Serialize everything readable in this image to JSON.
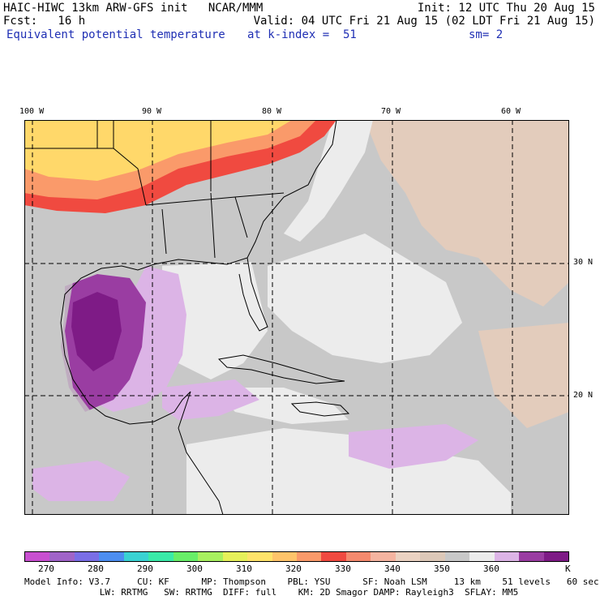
{
  "header": {
    "line1_left": "HAIC-HIWC 13km ARW-GFS init   NCAR/MMM",
    "line1_right": "Init: 12 UTC Thu 20 Aug 15",
    "line2_left": "Fcst:   16 h",
    "line2_right": "Valid: 04 UTC Fri 21 Aug 15 (02 LDT Fri 21 Aug 15)",
    "line3_left": "Equivalent potential temperature",
    "line3_mid": "at k-index =  51",
    "line3_right": "sm= 2"
  },
  "map": {
    "lon_labels": [
      "100 W",
      "90 W",
      "80 W",
      "70 W",
      "60 W"
    ],
    "lat_labels": [
      "30 N",
      "20 N"
    ],
    "colors": {
      "ocean_gray": "#c8c8c8",
      "light": "#ececec",
      "tan": "#e3ccbc",
      "lavender": "#dcb4e6",
      "purple": "#9a3da2",
      "dark_purple": "#7e1b86",
      "orange": "#fa9a6a",
      "red": "#f04a40",
      "yellow": "#ffd86a",
      "coast": "#000000"
    }
  },
  "colorbar": {
    "colors": [
      "#c84fd0",
      "#a064c8",
      "#7a6ee6",
      "#4d8ef0",
      "#3ad2d2",
      "#3aeaa8",
      "#68ee68",
      "#a8f060",
      "#e6f05a",
      "#ffe36a",
      "#ffc46a",
      "#fa9a6a",
      "#f04a40",
      "#f58a6e",
      "#f5b4a0",
      "#ebd2c2",
      "#dcc8b8",
      "#c8c8c8",
      "#ececec",
      "#dcb4e6",
      "#9a3da2",
      "#7e1b86"
    ],
    "ticks": [
      "270",
      "280",
      "290",
      "300",
      "310",
      "320",
      "330",
      "340",
      "350",
      "360"
    ],
    "unit": "K"
  },
  "footer": {
    "line1": "Model Info: V3.7     CU: KF      MP: Thompson    PBL: YSU      SF: Noah LSM     13 km    51 levels   60 sec",
    "line2": "              LW: RRTMG   SW: RRTMG  DIFF: full    KM: 2D Smagor DAMP: Rayleigh3  SFLAY: MM5"
  }
}
